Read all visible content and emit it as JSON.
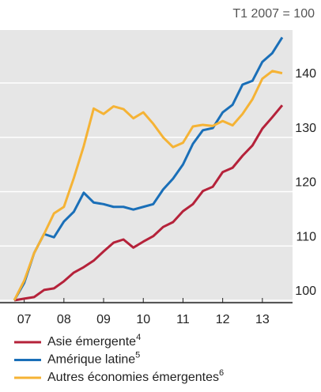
{
  "chart_data": {
    "type": "line",
    "unit_label": "T1 2007 = 100",
    "x": [
      2007.25,
      2007.5,
      2007.75,
      2008.0,
      2008.25,
      2008.5,
      2008.75,
      2009.0,
      2009.25,
      2009.5,
      2009.75,
      2010.0,
      2010.25,
      2010.5,
      2010.75,
      2011.0,
      2011.25,
      2011.5,
      2011.75,
      2012.0,
      2012.25,
      2012.5,
      2012.75,
      2013.0,
      2013.25,
      2013.5,
      2013.75,
      2014.0
    ],
    "series": [
      {
        "name": "Asie émergente",
        "footnote": "4",
        "color": "#b5223a",
        "values": [
          100.0,
          100.3,
          100.6,
          101.9,
          102.2,
          103.5,
          105.1,
          106.1,
          107.3,
          109.0,
          110.6,
          111.2,
          109.7,
          110.8,
          111.8,
          113.5,
          114.4,
          116.4,
          117.7,
          120.1,
          120.9,
          123.6,
          124.4,
          126.6,
          128.5,
          131.6,
          133.7,
          135.9
        ]
      },
      {
        "name": "Amérique latine",
        "footnote": "5",
        "color": "#1a6fb8",
        "values": [
          100.0,
          103.2,
          108.7,
          112.2,
          111.6,
          114.5,
          116.3,
          119.8,
          118.0,
          117.7,
          117.2,
          117.2,
          116.7,
          117.2,
          117.7,
          120.4,
          122.4,
          125.0,
          128.8,
          131.3,
          131.7,
          134.6,
          136.0,
          139.7,
          140.4,
          143.9,
          145.5,
          148.4
        ]
      },
      {
        "name": "Autres économies émergentes",
        "footnote": "6",
        "color": "#f5b335",
        "values": [
          100.0,
          103.6,
          108.7,
          112.2,
          116.0,
          117.2,
          122.5,
          128.4,
          135.3,
          134.3,
          135.7,
          135.2,
          133.5,
          134.6,
          132.5,
          130.0,
          128.2,
          129.0,
          132.0,
          132.3,
          132.1,
          133.0,
          132.2,
          134.3,
          137.0,
          140.8,
          142.2,
          141.8
        ]
      }
    ],
    "xlim": [
      2006.89,
      2014.26
    ],
    "xticks": [
      {
        "value": 2007.5,
        "label": "07"
      },
      {
        "value": 2008.5,
        "label": "08"
      },
      {
        "value": 2009.5,
        "label": "09"
      },
      {
        "value": 2010.5,
        "label": "10"
      },
      {
        "value": 2011.5,
        "label": "11"
      },
      {
        "value": 2012.5,
        "label": "12"
      },
      {
        "value": 2013.5,
        "label": "13"
      }
    ],
    "ylim": [
      99.56,
      149.75
    ],
    "yticks": [
      100,
      110,
      120,
      130,
      140
    ],
    "grid": true
  }
}
